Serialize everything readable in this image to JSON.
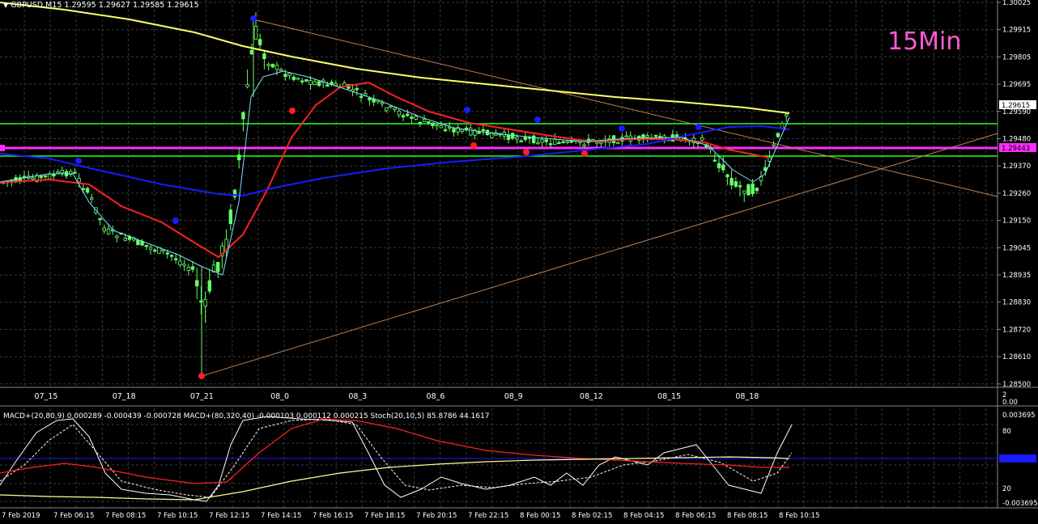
{
  "header": {
    "symbol": "GBPUSD,M15",
    "ohlc": "1.29595 1.29627 1.29585 1.29615"
  },
  "watermark": "15Min",
  "colors": {
    "background": "#000000",
    "grid": "#3a3a3a",
    "candle": "#66ff66",
    "ma_yellow": "#ffff66",
    "ma_red": "#ff2020",
    "ma_blue": "#1a1aff",
    "ma_cyan": "#7fe0ff",
    "hline_green": "#22ff22",
    "hline_magenta": "#ff2bff",
    "trendline": "#c08050",
    "swing_high": "#1a1aff",
    "swing_low": "#ff2020",
    "watermark": "#ff5ad7"
  },
  "price_axis": {
    "labels": [
      "1.30025",
      "1.29915",
      "1.29805",
      "1.29695",
      "1.29590",
      "1.29480",
      "1.29370",
      "1.29260",
      "1.29150",
      "1.29045",
      "1.28935",
      "1.28830",
      "1.28720",
      "1.28610",
      "1.28500"
    ],
    "current_price": "1.29615",
    "magenta_level": "1.29443"
  },
  "mid_time_axis": {
    "labels": [
      "07_15",
      "07_18",
      "07_21",
      "08_0",
      "08_3",
      "08_6",
      "08_9",
      "08_12",
      "08_15",
      "08_18"
    ]
  },
  "mid_axis_right": [
    "2",
    "0.00"
  ],
  "indicator": {
    "label": "MACD+(20,80,9) 0.000289 -0.000439 -0.000728  MACD+(80,320,40) -0.000103 0.000112 0.000215  Stoch(20,10,5) 85.8786 44.1617",
    "axis_labels": [
      "0.003695",
      "80",
      "0.000000",
      "20",
      "-0.003695"
    ]
  },
  "bottom_time_axis": {
    "labels": [
      "7 Feb 2019",
      "7 Feb 06:15",
      "7 Feb 08:15",
      "7 Feb 10:15",
      "7 Feb 12:15",
      "7 Feb 14:15",
      "7 Feb 16:15",
      "7 Feb 18:15",
      "7 Feb 20:15",
      "7 Feb 22:15",
      "8 Feb 00:15",
      "8 Feb 02:15",
      "8 Feb 04:15",
      "8 Feb 06:15",
      "8 Feb 08:15",
      "8 Feb 10:15"
    ]
  }
}
